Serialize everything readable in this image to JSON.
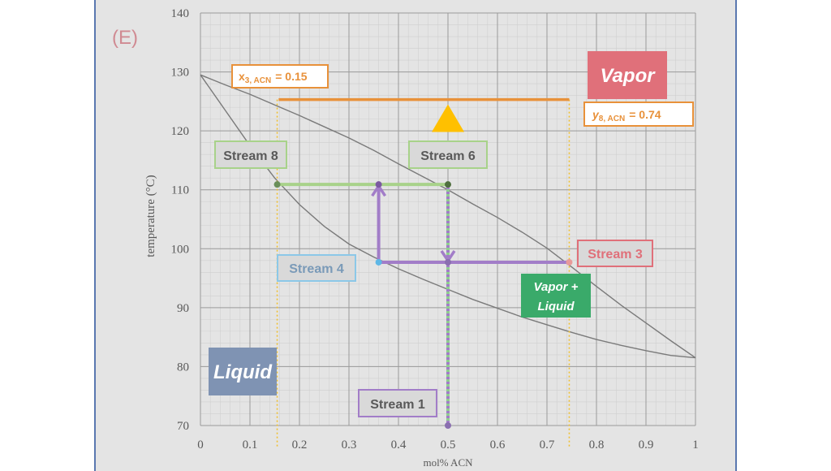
{
  "panel_label": "(E)",
  "colors": {
    "stream_label_fill": "#d9d9d9",
    "ruler_orange": "#e8913a",
    "green": "#a8d28a",
    "purple": "#a27dc8",
    "blue_pt": "#5eb7e6",
    "vapor_box": "#e0707a",
    "vl_box": "#3aaa6a",
    "liquid_box": "#7f93b3",
    "curve": "#7a7a7a"
  },
  "labels": {
    "vapor": "Vapor",
    "vapor_liquid": [
      "Vapor +",
      "Liquid"
    ],
    "liquid": "Liquid",
    "stream_8": "Stream 8",
    "stream_6": "Stream 6",
    "stream_3": "Stream 3",
    "stream_4": "Stream 4",
    "stream_1": "Stream 1",
    "x3_lhs": "x",
    "x3_sub": "3, ACN",
    "x3_rhs": "= 0.15",
    "y8_lhs": "y",
    "y8_sub": "8, ACN",
    "y8_rhs": "= 0.74"
  },
  "chart_data": {
    "type": "line",
    "xlabel": "mol% ACN",
    "ylabel": "temperature (°C)",
    "xlim": [
      0,
      1
    ],
    "ylim": [
      70,
      140
    ],
    "x_ticks": [
      "0",
      "0.1",
      "0.2",
      "0.3",
      "0.4",
      "0.5",
      "0.6",
      "0.7",
      "0.8",
      "0.9",
      "1"
    ],
    "y_ticks": [
      "70",
      "80",
      "90",
      "100",
      "110",
      "120",
      "130",
      "140"
    ],
    "grid": true,
    "series": [
      {
        "x": [
          0,
          0.05,
          0.1,
          0.15,
          0.2,
          0.25,
          0.3,
          0.35,
          0.4,
          0.45,
          0.5,
          0.55,
          0.6,
          0.65,
          0.7,
          0.75,
          0.8,
          0.85,
          0.9,
          0.95,
          1.0
        ],
        "y": [
          129.5,
          123.5,
          117.5,
          112.0,
          107.5,
          103.8,
          100.8,
          98.6,
          96.6,
          94.8,
          93.1,
          91.4,
          89.9,
          88.4,
          87.1,
          85.8,
          84.6,
          83.6,
          82.7,
          81.9,
          81.5
        ]
      },
      {
        "x": [
          0,
          0.05,
          0.1,
          0.15,
          0.2,
          0.25,
          0.3,
          0.35,
          0.4,
          0.45,
          0.5,
          0.55,
          0.6,
          0.65,
          0.7,
          0.75,
          0.8,
          0.85,
          0.9,
          0.95,
          1.0
        ],
        "y": [
          129.5,
          127.8,
          126.2,
          124.4,
          122.6,
          120.7,
          118.8,
          116.7,
          114.4,
          112.2,
          110.0,
          107.6,
          105.3,
          102.8,
          100.1,
          96.9,
          93.6,
          90.4,
          87.4,
          84.4,
          81.5
        ]
      }
    ],
    "annotations": {
      "tie_line_top": {
        "x": [
          0.158,
          0.745
        ],
        "y": 125.3
      },
      "x3_drop": {
        "x": 0.155,
        "y": [
          125.3,
          70
        ]
      },
      "y8_drop": {
        "x": 0.745,
        "y": [
          125.3,
          70
        ]
      },
      "stream6_tie": {
        "x": [
          0.155,
          0.5
        ],
        "y": 110.9
      },
      "stream3_tie": {
        "x": [
          0.36,
          0.745
        ],
        "y": 97.7
      },
      "feed_line": {
        "x": 0.5,
        "y": [
          70,
          110.9
        ]
      },
      "up_arrow": {
        "x": 0.36,
        "y": [
          97.7,
          110.9
        ]
      },
      "down_arrow": {
        "x": 0.5,
        "y": [
          110.9,
          97.7
        ]
      },
      "triangle": {
        "x": 0.5,
        "y": 124.5
      }
    }
  }
}
